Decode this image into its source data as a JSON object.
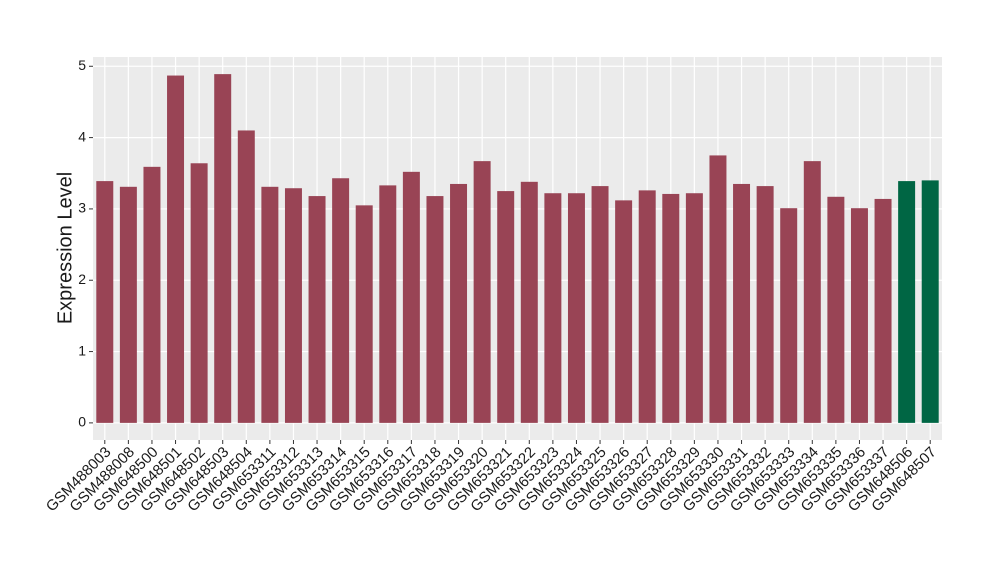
{
  "chart_data": {
    "type": "bar",
    "y_label": "Expression Level",
    "categories": [
      "GSM488003",
      "GSM488008",
      "GSM648500",
      "GSM648501",
      "GSM648502",
      "GSM648503",
      "GSM648504",
      "GSM653311",
      "GSM653312",
      "GSM653313",
      "GSM653314",
      "GSM653315",
      "GSM653316",
      "GSM653317",
      "GSM653318",
      "GSM653319",
      "GSM653320",
      "GSM653321",
      "GSM653322",
      "GSM653323",
      "GSM653324",
      "GSM653325",
      "GSM653326",
      "GSM653327",
      "GSM653328",
      "GSM653329",
      "GSM653330",
      "GSM653331",
      "GSM653332",
      "GSM653333",
      "GSM653334",
      "GSM653335",
      "GSM653336",
      "GSM653337",
      "GSM648506",
      "GSM648507"
    ],
    "values": [
      3.39,
      3.31,
      3.59,
      4.87,
      3.64,
      4.89,
      4.1,
      3.31,
      3.29,
      3.18,
      3.43,
      3.05,
      3.33,
      3.52,
      3.18,
      3.35,
      3.67,
      3.25,
      3.38,
      3.22,
      3.22,
      3.32,
      3.12,
      3.26,
      3.21,
      3.22,
      3.75,
      3.35,
      3.32,
      3.01,
      3.67,
      3.17,
      3.01,
      3.14,
      3.39,
      3.4
    ],
    "colors": [
      "#994455",
      "#994455",
      "#994455",
      "#994455",
      "#994455",
      "#994455",
      "#994455",
      "#994455",
      "#994455",
      "#994455",
      "#994455",
      "#994455",
      "#994455",
      "#994455",
      "#994455",
      "#994455",
      "#994455",
      "#994455",
      "#994455",
      "#994455",
      "#994455",
      "#994455",
      "#994455",
      "#994455",
      "#994455",
      "#994455",
      "#994455",
      "#994455",
      "#994455",
      "#994455",
      "#994455",
      "#994455",
      "#994455",
      "#994455",
      "#006644",
      "#006644"
    ],
    "ylim": [
      -0.24,
      5.13
    ],
    "yticks": [
      0,
      1,
      2,
      3,
      4,
      5
    ],
    "grid": true
  }
}
